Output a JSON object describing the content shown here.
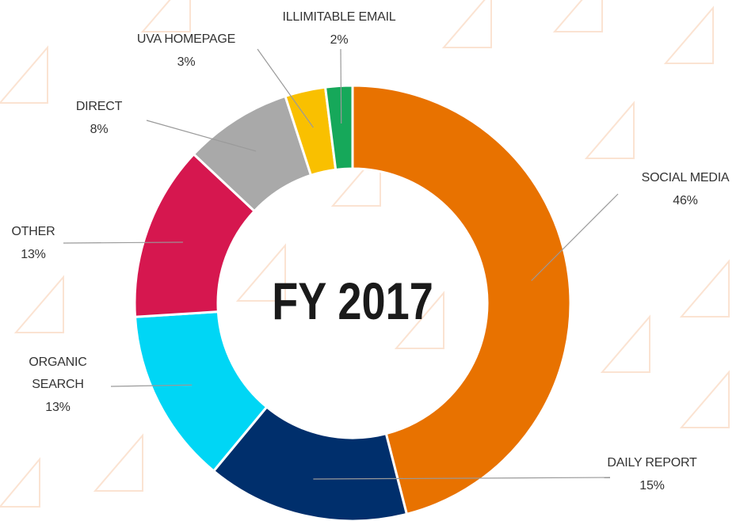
{
  "chart_data": {
    "type": "donut",
    "title": "FY 2017",
    "categories": [
      "SOCIAL MEDIA",
      "DAILY REPORT",
      "ORGANIC SEARCH",
      "OTHER",
      "DIRECT",
      "UVA HOMEPAGE",
      "ILLIMITABLE EMAIL"
    ],
    "values": [
      46,
      15,
      13,
      13,
      8,
      3,
      2
    ],
    "value_labels": [
      "46%",
      "15%",
      "13%",
      "13%",
      "8%",
      "3%",
      "2%"
    ],
    "colors": [
      "#e87200",
      "#002f6c",
      "#00d6f5",
      "#d6174f",
      "#a9a9a9",
      "#f9c000",
      "#16a85a"
    ]
  }
}
